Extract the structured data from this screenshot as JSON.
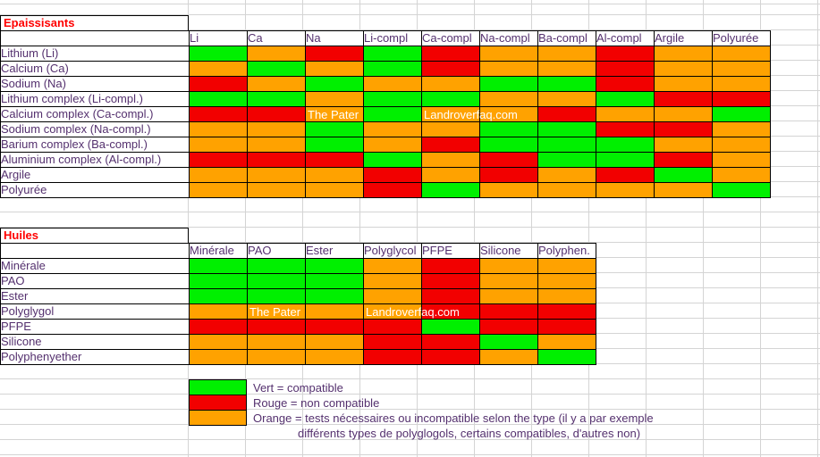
{
  "colors": {
    "G": "#00f000",
    "R": "#f20000",
    "O": "#ffa200",
    "grid": "#d4d4d4",
    "title": "#ff0000",
    "label": "#54306e",
    "watermark": "#ffffff"
  },
  "table_epaississants": {
    "title": "Epaissisants",
    "col_headers": [
      "Li",
      "Ca",
      "Na",
      "Li-compl",
      "Ca-compl",
      "Na-compl",
      "Ba-compl",
      "Al-compl",
      "Argile",
      "Polyurée"
    ],
    "rows": [
      {
        "label": "Lithium (Li)",
        "cells": [
          "G",
          "O",
          "R",
          "G",
          "R",
          "O",
          "O",
          "R",
          "O",
          "O"
        ]
      },
      {
        "label": "Calcium (Ca)",
        "cells": [
          "O",
          "G",
          "O",
          "G",
          "R",
          "O",
          "O",
          "R",
          "O",
          "O"
        ]
      },
      {
        "label": "Sodium (Na)",
        "cells": [
          "R",
          "O",
          "G",
          "O",
          "O",
          "G",
          "G",
          "R",
          "O",
          "O"
        ]
      },
      {
        "label": "Lithium complex (Li-compl.)",
        "cells": [
          "G",
          "G",
          "O",
          "G",
          "G",
          "O",
          "O",
          "G",
          "R",
          "R"
        ]
      },
      {
        "label": "Calcium complex (Ca-compl.)",
        "cells": [
          "R",
          "R",
          {
            "c": "O",
            "wm": "The Pater"
          },
          "G",
          {
            "c": "O",
            "wm": "Landroverfaq.com"
          },
          "O",
          "R",
          "O",
          "O",
          "G"
        ]
      },
      {
        "label": "Sodium complex (Na-compl.)",
        "cells": [
          "O",
          "O",
          "G",
          "O",
          "O",
          "G",
          "G",
          "R",
          "R",
          "O"
        ]
      },
      {
        "label": "Barium complex (Ba-compl.)",
        "cells": [
          "O",
          "O",
          "G",
          "O",
          "R",
          "G",
          "G",
          "G",
          "O",
          "O"
        ]
      },
      {
        "label": "Aluminium complex (Al-compl.)",
        "cells": [
          "R",
          "R",
          "R",
          "G",
          "O",
          "R",
          "G",
          "G",
          "R",
          "O"
        ]
      },
      {
        "label": "Argile",
        "cells": [
          "O",
          "O",
          "O",
          "R",
          "O",
          "R",
          "O",
          "R",
          "G",
          "O"
        ]
      },
      {
        "label": "Polyurée",
        "cells": [
          "O",
          "O",
          "O",
          "R",
          "G",
          "O",
          "O",
          "O",
          "O",
          "G"
        ]
      }
    ]
  },
  "table_huiles": {
    "title": "Huiles",
    "col_headers": [
      "Minérale",
      "PAO",
      "Ester",
      "Polyglycol",
      "PFPE",
      "Silicone",
      "Polyphen."
    ],
    "rows": [
      {
        "label": "Minérale",
        "cells": [
          "G",
          "G",
          "G",
          "O",
          "R",
          "O",
          "O"
        ]
      },
      {
        "label": "PAO",
        "cells": [
          "G",
          "G",
          "G",
          "O",
          "R",
          "O",
          "O"
        ]
      },
      {
        "label": "Ester",
        "cells": [
          "G",
          "G",
          "G",
          "O",
          "R",
          "O",
          "O"
        ]
      },
      {
        "label": "Polyglygol",
        "cells": [
          "O",
          {
            "c": "O",
            "wm": "The Pater"
          },
          "O",
          {
            "c": "O",
            "wm": "Landroverfaq.com"
          },
          "R",
          "R",
          "R"
        ]
      },
      {
        "label": "PFPE",
        "cells": [
          "R",
          "R",
          "R",
          "R",
          "G",
          "R",
          "R"
        ]
      },
      {
        "label": "Silicone",
        "cells": [
          "O",
          "O",
          "O",
          "R",
          "R",
          "G",
          "O"
        ]
      },
      {
        "label": "Polyphenyether",
        "cells": [
          "O",
          "O",
          "O",
          "R",
          "R",
          "O",
          "G"
        ]
      }
    ]
  },
  "legend": {
    "items": [
      {
        "color": "G",
        "text": "Vert = compatible"
      },
      {
        "color": "R",
        "text": "Rouge = non compatible"
      },
      {
        "color": "O",
        "text": "Orange = tests nécessaires ou incompatible selon the type (il y a par exemple"
      }
    ],
    "continuation": "différents types de polyglogols, certains compatibles, d'autres non)"
  },
  "chart_data": [
    {
      "type": "heatmap",
      "title": "Epaissisants",
      "columns": [
        "Li",
        "Ca",
        "Na",
        "Li-compl",
        "Ca-compl",
        "Na-compl",
        "Ba-compl",
        "Al-compl",
        "Argile",
        "Polyurée"
      ],
      "rows": [
        "Lithium (Li)",
        "Calcium (Ca)",
        "Sodium (Na)",
        "Lithium complex (Li-compl.)",
        "Calcium complex (Ca-compl.)",
        "Sodium complex (Na-compl.)",
        "Barium complex (Ba-compl.)",
        "Aluminium complex (Al-compl.)",
        "Argile",
        "Polyurée"
      ],
      "values": [
        [
          "G",
          "O",
          "R",
          "G",
          "R",
          "O",
          "O",
          "R",
          "O",
          "O"
        ],
        [
          "O",
          "G",
          "O",
          "G",
          "R",
          "O",
          "O",
          "R",
          "O",
          "O"
        ],
        [
          "R",
          "O",
          "G",
          "O",
          "O",
          "G",
          "G",
          "R",
          "O",
          "O"
        ],
        [
          "G",
          "G",
          "O",
          "G",
          "G",
          "O",
          "O",
          "G",
          "R",
          "R"
        ],
        [
          "R",
          "R",
          "O",
          "G",
          "O",
          "O",
          "R",
          "O",
          "O",
          "G"
        ],
        [
          "O",
          "O",
          "G",
          "O",
          "O",
          "G",
          "G",
          "R",
          "R",
          "O"
        ],
        [
          "O",
          "O",
          "G",
          "O",
          "R",
          "G",
          "G",
          "G",
          "O",
          "O"
        ],
        [
          "R",
          "R",
          "R",
          "G",
          "O",
          "R",
          "G",
          "G",
          "R",
          "O"
        ],
        [
          "O",
          "O",
          "O",
          "R",
          "O",
          "R",
          "O",
          "R",
          "G",
          "O"
        ],
        [
          "O",
          "O",
          "O",
          "R",
          "G",
          "O",
          "O",
          "O",
          "O",
          "G"
        ]
      ],
      "value_legend": {
        "G": "Vert = compatible",
        "R": "Rouge = non compatible",
        "O": "Orange = tests nécessaires ou incompatible selon the type"
      }
    },
    {
      "type": "heatmap",
      "title": "Huiles",
      "columns": [
        "Minérale",
        "PAO",
        "Ester",
        "Polyglycol",
        "PFPE",
        "Silicone",
        "Polyphen."
      ],
      "rows": [
        "Minérale",
        "PAO",
        "Ester",
        "Polyglygol",
        "PFPE",
        "Silicone",
        "Polyphenyether"
      ],
      "values": [
        [
          "G",
          "G",
          "G",
          "O",
          "R",
          "O",
          "O"
        ],
        [
          "G",
          "G",
          "G",
          "O",
          "R",
          "O",
          "O"
        ],
        [
          "G",
          "G",
          "G",
          "O",
          "R",
          "O",
          "O"
        ],
        [
          "O",
          "O",
          "O",
          "O",
          "R",
          "R",
          "R"
        ],
        [
          "R",
          "R",
          "R",
          "R",
          "G",
          "R",
          "R"
        ],
        [
          "O",
          "O",
          "O",
          "R",
          "R",
          "G",
          "O"
        ],
        [
          "O",
          "O",
          "O",
          "R",
          "R",
          "O",
          "G"
        ]
      ],
      "value_legend": {
        "G": "Vert = compatible",
        "R": "Rouge = non compatible",
        "O": "Orange = tests nécessaires ou incompatible selon the type"
      }
    }
  ]
}
